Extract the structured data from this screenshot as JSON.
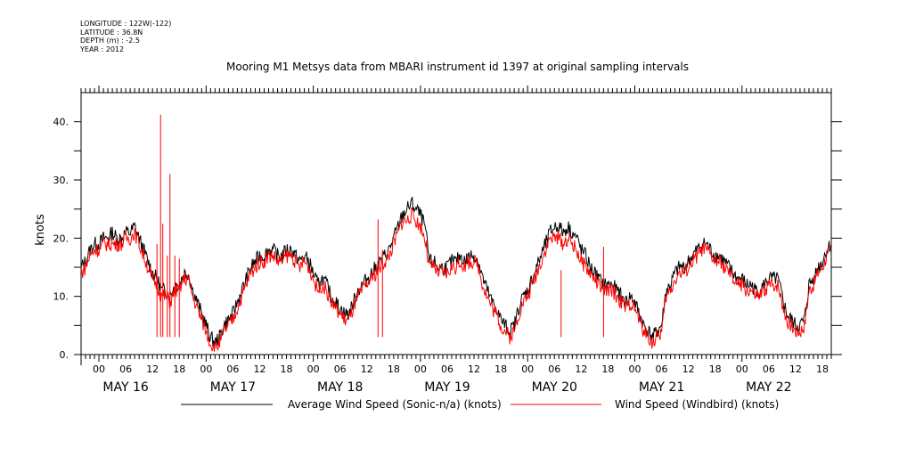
{
  "header": {
    "meta_lines": [
      "LONGITUDE : 122W(-122)",
      "LATITUDE : 36.8N",
      "DEPTH (m) : -2.5",
      "YEAR : 2012"
    ],
    "title": "Mooring M1 Metsys data from MBARI instrument id 1397 at original sampling intervals"
  },
  "chart_data": {
    "type": "line",
    "title": "Mooring M1 Metsys data from MBARI instrument id 1397 at original sampling intervals",
    "xlabel": "",
    "ylabel": "knots",
    "x_start": "2012-05-15 20:00",
    "x_end": "2012-05-22 20:00",
    "x_unit": "hours since 2012-05-15 20:00",
    "xlim": [
      0,
      168
    ],
    "ylim": [
      0,
      45
    ],
    "y_major_ticks": [
      0,
      10,
      20,
      30,
      40
    ],
    "y_tick_labels": [
      "0.",
      "10.",
      "20.",
      "30.",
      "40."
    ],
    "y_minor_ticks": [
      5,
      15,
      25,
      35
    ],
    "hour_tick_labels": [
      "00",
      "06",
      "12",
      "18"
    ],
    "day_labels": [
      "MAY 16",
      "MAY 17",
      "MAY 18",
      "MAY 19",
      "MAY 20",
      "MAY 21",
      "MAY 22"
    ],
    "grid": false,
    "legend": "bottom",
    "series": [
      {
        "name": "Average Wind Speed (Sonic-n/a) (knots)",
        "color": "#000000",
        "values": [
          15,
          16,
          18,
          19,
          19,
          20,
          20,
          21,
          20,
          20,
          21,
          21,
          22,
          20,
          18,
          16,
          14,
          13,
          11,
          11,
          10,
          12,
          12,
          14,
          14,
          11,
          9,
          7,
          5,
          3,
          2,
          3,
          5,
          6,
          7,
          9,
          11,
          13,
          15,
          16,
          17,
          17,
          18,
          18,
          17,
          17,
          18,
          18,
          17,
          16,
          17,
          16,
          14,
          12,
          13,
          12,
          10,
          9,
          8,
          7,
          7,
          9,
          11,
          12,
          13,
          14,
          15,
          16,
          17,
          18,
          20,
          22,
          24,
          25,
          26,
          25,
          24,
          22,
          16,
          16,
          15,
          15,
          15,
          16,
          16,
          17,
          16,
          17,
          17,
          16,
          13,
          11,
          9,
          8,
          6,
          5,
          4,
          5,
          8,
          10,
          11,
          13,
          15,
          17,
          19,
          21,
          22,
          22,
          21,
          22,
          21,
          20,
          18,
          17,
          15,
          14,
          13,
          12,
          12,
          12,
          11,
          10,
          9,
          10,
          9,
          7,
          5,
          4,
          3,
          4,
          5,
          11,
          12,
          14,
          15,
          15,
          16,
          17,
          18,
          19,
          19,
          18,
          17,
          17,
          16,
          15,
          14,
          13,
          13,
          12,
          12,
          11,
          11,
          12,
          13,
          13,
          13,
          10,
          7,
          6,
          5,
          5,
          6,
          12,
          13,
          15,
          16,
          18,
          19
        ],
        "note": "approximate hourly trace"
      },
      {
        "name": "Wind Speed (Windbird) (knots)",
        "color": "#ff0000",
        "values": [
          14,
          15,
          17,
          18,
          18,
          19,
          19,
          19,
          19,
          19,
          20,
          20,
          21,
          19,
          17,
          15,
          13,
          12,
          10,
          10,
          9,
          11,
          11,
          13,
          13,
          10,
          8,
          6,
          4,
          2,
          1,
          2,
          4,
          5,
          6,
          8,
          10,
          12,
          14,
          15,
          16,
          16,
          17,
          17,
          16,
          16,
          17,
          17,
          16,
          15,
          16,
          15,
          13,
          11,
          12,
          11,
          9,
          8,
          7,
          6,
          6,
          8,
          10,
          11,
          12,
          13,
          14,
          15,
          16,
          17,
          19,
          21,
          23,
          23,
          24,
          23,
          22,
          20,
          15,
          15,
          14,
          14,
          14,
          15,
          15,
          16,
          15,
          16,
          16,
          15,
          12,
          10,
          8,
          7,
          5,
          4,
          3,
          4,
          7,
          9,
          10,
          12,
          14,
          16,
          18,
          20,
          20,
          20,
          19,
          20,
          19,
          18,
          16,
          15,
          14,
          13,
          12,
          11,
          11,
          11,
          10,
          9,
          8,
          9,
          8,
          6,
          4,
          3,
          2,
          3,
          4,
          10,
          11,
          13,
          14,
          14,
          15,
          16,
          17,
          18,
          18,
          17,
          16,
          16,
          15,
          14,
          13,
          12,
          12,
          11,
          11,
          10,
          10,
          11,
          12,
          12,
          12,
          9,
          6,
          5,
          4,
          4,
          5,
          11,
          12,
          14,
          15,
          17,
          18
        ],
        "spikes": [
          {
            "hour": 17,
            "value": 19
          },
          {
            "hour": 17.8,
            "value": 41.2
          },
          {
            "hour": 18.3,
            "value": 22.5
          },
          {
            "hour": 19.3,
            "value": 17
          },
          {
            "hour": 19.9,
            "value": 31
          },
          {
            "hour": 21,
            "value": 17
          },
          {
            "hour": 22,
            "value": 16.5
          },
          {
            "hour": 66.5,
            "value": 23.2
          },
          {
            "hour": 67.5,
            "value": 18
          },
          {
            "hour": 107.5,
            "value": 14.5
          },
          {
            "hour": 117,
            "value": 18.5
          }
        ]
      }
    ]
  },
  "legend": {
    "items": [
      {
        "label": "Average Wind Speed (Sonic-n/a) (knots)",
        "color": "#000000"
      },
      {
        "label": "Wind Speed (Windbird) (knots)",
        "color": "#ff0000"
      }
    ]
  }
}
